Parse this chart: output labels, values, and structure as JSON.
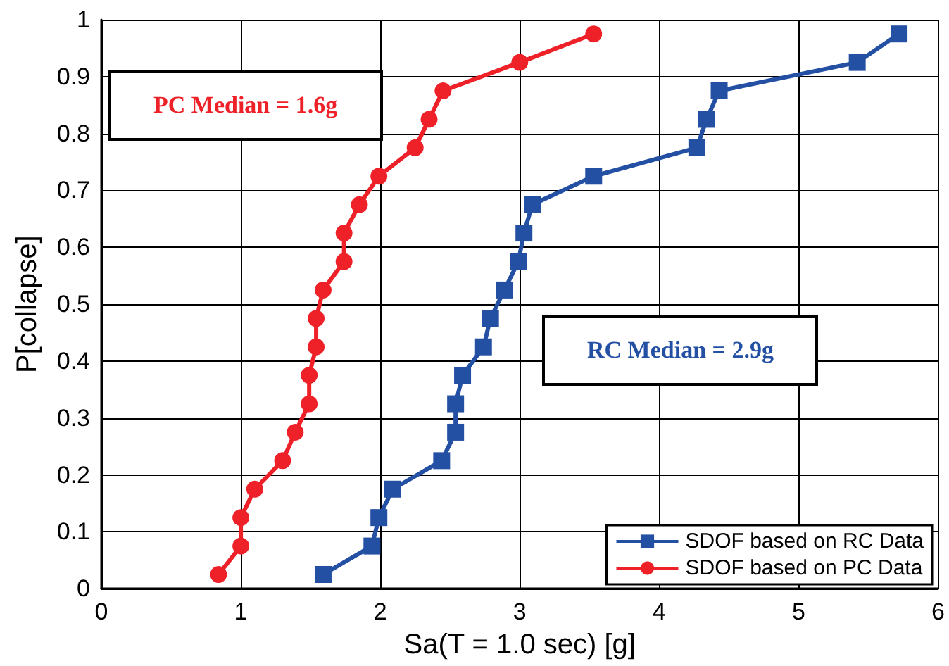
{
  "chart_data": {
    "type": "line",
    "xlabel": "Sa(T = 1.0 sec) [g]",
    "ylabel": "P[collapse]",
    "xlim": [
      0,
      6
    ],
    "xticks": [
      0,
      1,
      2,
      3,
      4,
      5,
      6
    ],
    "ylim": [
      0,
      1
    ],
    "yticks": [
      0,
      0.1,
      0.2,
      0.3,
      0.4,
      0.5,
      0.6,
      0.7,
      0.8,
      0.9,
      1
    ],
    "grid": true,
    "legend": "bottom right",
    "line_style": "solid",
    "annotations": [
      "RC Median = 2.9g",
      "PC Median = 1.6g"
    ],
    "series": [
      {
        "name": "SDOF based on RC Data",
        "color": "#2450a4",
        "marker": "square",
        "x": [
          1.59,
          1.94,
          1.99,
          2.09,
          2.44,
          2.54,
          2.54,
          2.59,
          2.74,
          2.79,
          2.89,
          2.99,
          3.03,
          3.09,
          3.53,
          4.27,
          4.34,
          4.43,
          5.42,
          5.72
        ],
        "values": [
          0.025,
          0.075,
          0.125,
          0.175,
          0.225,
          0.275,
          0.325,
          0.375,
          0.425,
          0.475,
          0.525,
          0.575,
          0.625,
          0.675,
          0.725,
          0.775,
          0.825,
          0.875,
          0.925,
          0.975
        ]
      },
      {
        "name": "SDOF based on PC Data",
        "color": "#ee2028",
        "marker": "circle",
        "x": [
          0.84,
          1.0,
          1.0,
          1.1,
          1.3,
          1.39,
          1.49,
          1.49,
          1.54,
          1.54,
          1.59,
          1.74,
          1.74,
          1.85,
          1.99,
          2.25,
          2.35,
          2.45,
          3.0,
          3.53
        ],
        "values": [
          0.025,
          0.075,
          0.125,
          0.175,
          0.225,
          0.275,
          0.325,
          0.375,
          0.425,
          0.475,
          0.525,
          0.575,
          0.625,
          0.675,
          0.725,
          0.775,
          0.825,
          0.875,
          0.925,
          0.975
        ]
      }
    ]
  }
}
